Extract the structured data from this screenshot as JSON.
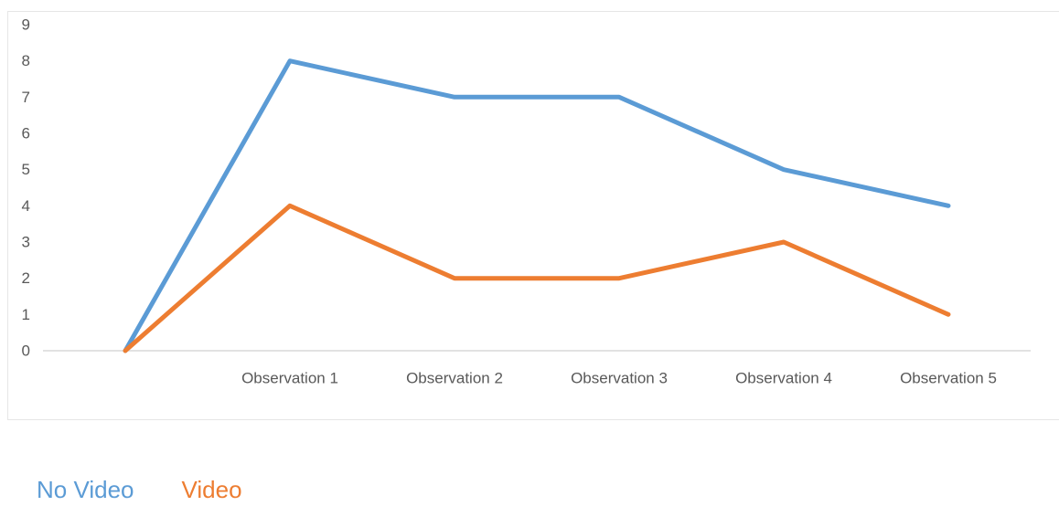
{
  "chart_data": {
    "type": "line",
    "title": "",
    "xlabel": "",
    "ylabel": "",
    "categories": [
      "",
      "Observation 1",
      "Observation 2",
      "Observation 3",
      "Observation 4",
      "Observation 5"
    ],
    "ylim": [
      0,
      9
    ],
    "yticks": [
      0,
      1,
      2,
      3,
      4,
      5,
      6,
      7,
      8,
      9
    ],
    "grid": false,
    "legend_position": "bottom-left",
    "series": [
      {
        "name": "No Video",
        "color": "#5B9BD5",
        "values": [
          0,
          8,
          7,
          7,
          5,
          4
        ]
      },
      {
        "name": "Video",
        "color": "#ED7D31",
        "values": [
          0,
          4,
          2,
          2,
          3,
          1
        ]
      }
    ]
  }
}
